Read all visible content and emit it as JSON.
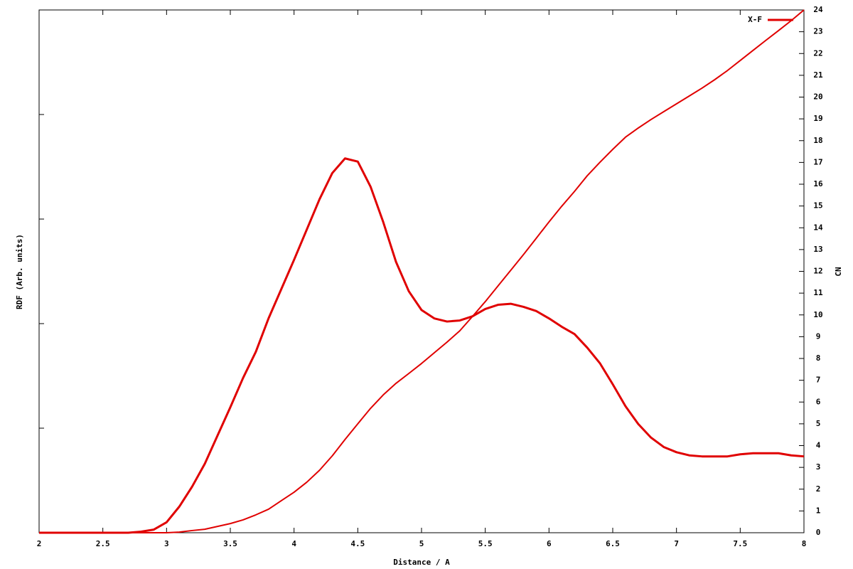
{
  "chart_data": {
    "type": "line",
    "xlabel": "Distance / A",
    "ylabel": "RDF (Arb. units)",
    "y2label": "CN",
    "x": [
      2.0,
      2.1,
      2.2,
      2.3,
      2.4,
      2.5,
      2.6,
      2.7,
      2.8,
      2.9,
      3.0,
      3.1,
      3.2,
      3.3,
      3.4,
      3.5,
      3.6,
      3.7,
      3.8,
      3.9,
      4.0,
      4.1,
      4.2,
      4.3,
      4.4,
      4.5,
      4.6,
      4.7,
      4.8,
      4.9,
      5.0,
      5.1,
      5.2,
      5.3,
      5.4,
      5.5,
      5.6,
      5.7,
      5.8,
      5.9,
      6.0,
      6.1,
      6.2,
      6.3,
      6.4,
      6.5,
      6.6,
      6.7,
      6.8,
      6.9,
      7.0,
      7.1,
      7.2,
      7.3,
      7.4,
      7.5,
      7.6,
      7.7,
      7.8,
      7.9,
      8.0
    ],
    "series": [
      {
        "name": "X-F",
        "color": "#e00000",
        "axis": "y",
        "values": [
          0,
          0,
          0,
          0,
          0,
          0,
          0,
          0,
          0.01,
          0.03,
          0.1,
          0.25,
          0.44,
          0.66,
          0.93,
          1.2,
          1.48,
          1.73,
          2.05,
          2.33,
          2.61,
          2.9,
          3.19,
          3.44,
          3.58,
          3.55,
          3.31,
          2.97,
          2.59,
          2.31,
          2.13,
          2.05,
          2.02,
          2.03,
          2.07,
          2.14,
          2.18,
          2.19,
          2.16,
          2.12,
          2.05,
          1.97,
          1.9,
          1.77,
          1.62,
          1.42,
          1.21,
          1.04,
          0.91,
          0.82,
          0.77,
          0.74,
          0.73,
          0.73,
          0.73,
          0.75,
          0.76,
          0.76,
          0.76,
          0.74,
          0.73
        ]
      },
      {
        "color": "#e00000",
        "axis": "y2",
        "values": [
          0,
          0,
          0,
          0,
          0,
          0,
          0,
          0,
          0,
          0,
          0,
          0.03,
          0.1,
          0.16,
          0.29,
          0.42,
          0.59,
          0.82,
          1.08,
          1.47,
          1.86,
          2.32,
          2.87,
          3.53,
          4.28,
          5.0,
          5.71,
          6.33,
          6.86,
          7.31,
          7.77,
          8.26,
          8.75,
          9.27,
          9.93,
          10.61,
          11.33,
          12.05,
          12.77,
          13.52,
          14.27,
          14.99,
          15.67,
          16.39,
          17.01,
          17.6,
          18.16,
          18.58,
          18.97,
          19.33,
          19.69,
          20.05,
          20.41,
          20.8,
          21.22,
          21.68,
          22.14,
          22.6,
          23.05,
          23.51,
          24.0
        ]
      }
    ],
    "xlim": [
      2,
      8
    ],
    "xticks": [
      2,
      2.5,
      3,
      3.5,
      4,
      4.5,
      5,
      5.5,
      6,
      6.5,
      7,
      7.5,
      8
    ],
    "ylim": [
      0,
      5
    ],
    "y2lim": [
      0,
      24
    ],
    "y2ticks": [
      0,
      1,
      2,
      3,
      4,
      5,
      6,
      7,
      8,
      9,
      10,
      11,
      12,
      13,
      14,
      15,
      16,
      17,
      18,
      19,
      20,
      21,
      22,
      23,
      24
    ],
    "legend": "upper-right"
  }
}
